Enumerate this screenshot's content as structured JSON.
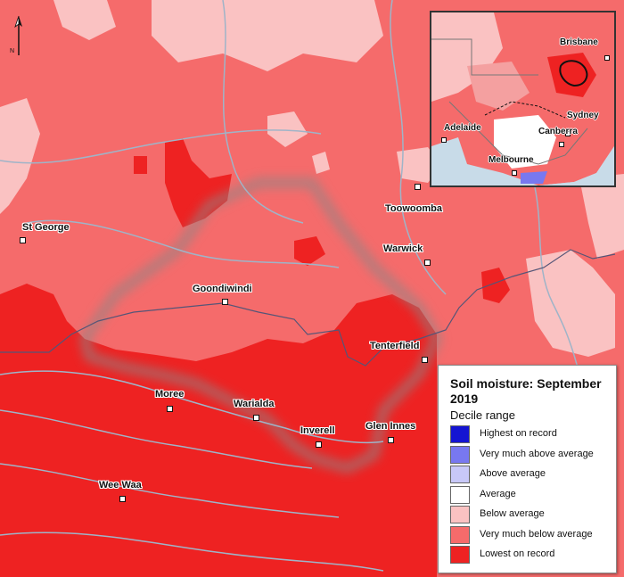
{
  "legend": {
    "title": "Soil moisture: September 2019",
    "subtitle": "Decile range",
    "items": [
      {
        "label": "Highest on record",
        "color": "#1414d2"
      },
      {
        "label": "Very much above average",
        "color": "#7878f0"
      },
      {
        "label": "Above average",
        "color": "#c8c8f8"
      },
      {
        "label": "Average",
        "color": "#ffffff"
      },
      {
        "label": "Below average",
        "color": "#fac2c2"
      },
      {
        "label": "Very much below average",
        "color": "#f56b6b"
      },
      {
        "label": "Lowest on record",
        "color": "#ee2222"
      }
    ]
  },
  "towns": [
    {
      "name": "St George"
    },
    {
      "name": "Goondiwindi"
    },
    {
      "name": "Toowoomba"
    },
    {
      "name": "Warwick"
    },
    {
      "name": "Tenterfield"
    },
    {
      "name": "Moree"
    },
    {
      "name": "Warialda"
    },
    {
      "name": "Inverell"
    },
    {
      "name": "Glen Innes"
    },
    {
      "name": "Wee Waa"
    }
  ],
  "inset": {
    "cities": [
      {
        "name": "Brisbane"
      },
      {
        "name": "Sydney"
      },
      {
        "name": "Canberra"
      },
      {
        "name": "Adelaide"
      },
      {
        "name": "Melbourne"
      }
    ]
  },
  "north_arrow": {
    "label": "N"
  }
}
